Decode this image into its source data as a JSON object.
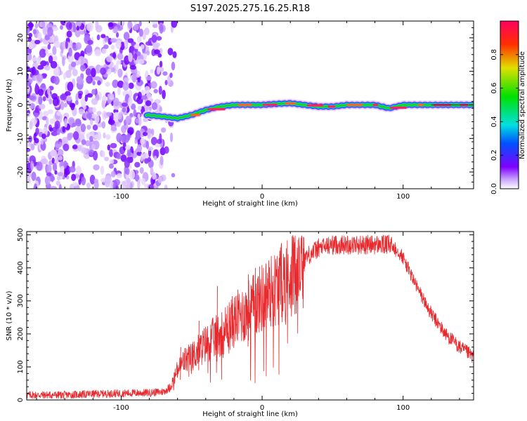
{
  "title": "S197.2025.275.16.25.R18",
  "chart_data": [
    {
      "type": "heatmap",
      "name": "spectrogram",
      "xlabel": "Height of straight line (km)",
      "ylabel": "Frequency (Hz)",
      "xlim": [
        -167,
        150
      ],
      "ylim": [
        -25,
        25
      ],
      "x_ticks": [
        -100,
        0,
        100
      ],
      "y_ticks": [
        -20,
        -10,
        0,
        10,
        20
      ],
      "colorbar": {
        "label": "Normalized spectral amplitude",
        "range": [
          0,
          1
        ],
        "ticks": [
          0.0,
          0.2,
          0.4,
          0.6,
          0.8
        ]
      },
      "noise_region_x": [
        -167,
        -70
      ],
      "signal_track": {
        "x": [
          -82,
          -70,
          -60,
          -50,
          -40,
          -30,
          -20,
          -10,
          0,
          10,
          20,
          30,
          40,
          50,
          60,
          70,
          80,
          90,
          100,
          110,
          120,
          130,
          140,
          150
        ],
        "frequency": [
          -3,
          -3.5,
          -4,
          -3,
          -1.5,
          -0.5,
          0,
          0,
          0,
          0.3,
          0.5,
          0,
          -0.5,
          -0.5,
          0,
          0,
          0,
          -1,
          0,
          0,
          0,
          0,
          0,
          0
        ]
      }
    },
    {
      "type": "line",
      "name": "snr",
      "xlabel": "Height of straight line (km)",
      "ylabel": "SNR (10 * v/v)",
      "xlim": [
        -167,
        150
      ],
      "ylim": [
        0,
        510
      ],
      "x_ticks": [
        -100,
        0,
        100
      ],
      "y_ticks": [
        0,
        100,
        200,
        300,
        400,
        500
      ],
      "color": "#e8292d",
      "series": [
        {
          "name": "SNR",
          "x": [
            -167,
            -140,
            -120,
            -100,
            -80,
            -70,
            -65,
            -60,
            -55,
            -50,
            -45,
            -40,
            -30,
            -20,
            -10,
            0,
            10,
            20,
            30,
            40,
            50,
            60,
            70,
            80,
            90,
            95,
            100,
            110,
            120,
            130,
            140,
            150
          ],
          "y": [
            15,
            15,
            18,
            20,
            22,
            25,
            40,
            90,
            120,
            130,
            150,
            170,
            200,
            240,
            270,
            310,
            340,
            380,
            430,
            460,
            470,
            470,
            470,
            470,
            470,
            460,
            430,
            340,
            260,
            200,
            160,
            130
          ]
        }
      ],
      "spikes": {
        "x": [
          -58,
          -45,
          -32,
          -10,
          -5
        ],
        "y": [
          160,
          240,
          345,
          380,
          400
        ]
      }
    }
  ]
}
